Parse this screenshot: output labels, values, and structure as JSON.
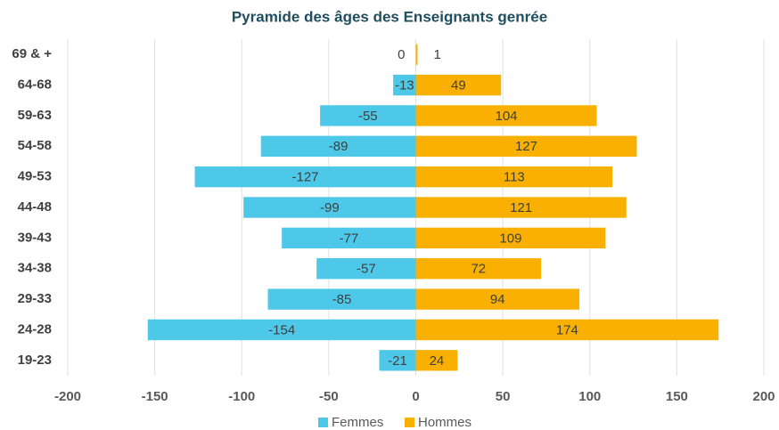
{
  "chart_data": {
    "type": "bar",
    "orientation": "horizontal",
    "title": "Pyramide des âges des Enseignants genrée",
    "categories": [
      "69 & +",
      "64-68",
      "59-63",
      "54-58",
      "49-53",
      "44-48",
      "39-43",
      "34-38",
      "29-33",
      "24-28",
      "19-23"
    ],
    "series": [
      {
        "name": "Femmes",
        "color": "#4dc8e8",
        "values": [
          0,
          -13,
          -55,
          -89,
          -127,
          -99,
          -77,
          -57,
          -85,
          -154,
          -21
        ]
      },
      {
        "name": "Hommes",
        "color": "#f9b000",
        "values": [
          1,
          49,
          104,
          127,
          113,
          121,
          109,
          72,
          94,
          174,
          24
        ]
      }
    ],
    "xlim": [
      -200,
      200
    ],
    "xticks": [
      -200,
      -150,
      -100,
      -50,
      0,
      50,
      100,
      150,
      200
    ],
    "grid": true,
    "legend": "bottom"
  }
}
